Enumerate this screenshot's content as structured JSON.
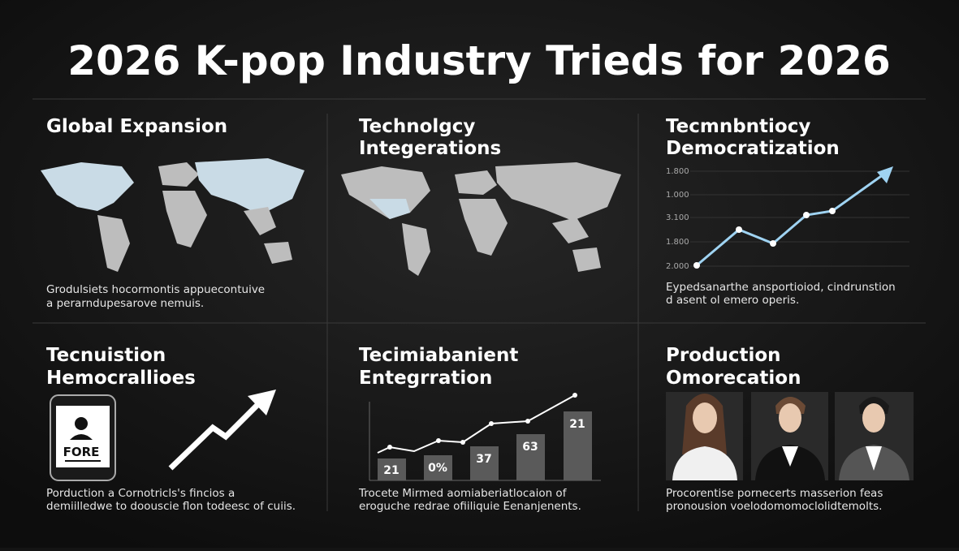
{
  "title": "2026 K-pop Industry Trieds for 2026",
  "panels": [
    {
      "heading": [
        "Global Expansion"
      ],
      "caption": [
        "Grodulsiets hocormontis appuecontuive",
        "a perarndupesarove nemuis."
      ]
    },
    {
      "heading": [
        "Technolgcy",
        "Integerations"
      ]
    },
    {
      "heading": [
        "Tecmnbntiocy",
        "Democratization"
      ],
      "axis_labels": [
        "1.800",
        "1.000",
        "3.100",
        "1.800",
        "2.000"
      ],
      "caption": [
        "Eypedsanarthe ansportioiod, cindrunstion",
        "d asent ol emero operis."
      ]
    },
    {
      "heading": [
        "Tecnuistion",
        "Hemocrallioes"
      ],
      "badge": "FORE",
      "caption": [
        "Porduction a Cornotricls's fincios a",
        "demiilledwe to doouscie flon todeesc of cuiis."
      ]
    },
    {
      "heading": [
        "Tecimiabanient",
        "Entegrration"
      ],
      "bar_labels": [
        "21",
        "0%",
        "37",
        "63",
        "21"
      ],
      "caption": [
        "Trocete Mirmed aomiaberiatlocaion of",
        "eroguche redrae ofiiliquie Eenanjenents."
      ]
    },
    {
      "heading": [
        "Production",
        "Omorecation"
      ],
      "caption": [
        "Procorentise pornecerts masserion feas",
        "pronousion voelodomomoclolidtemolts."
      ]
    }
  ]
}
